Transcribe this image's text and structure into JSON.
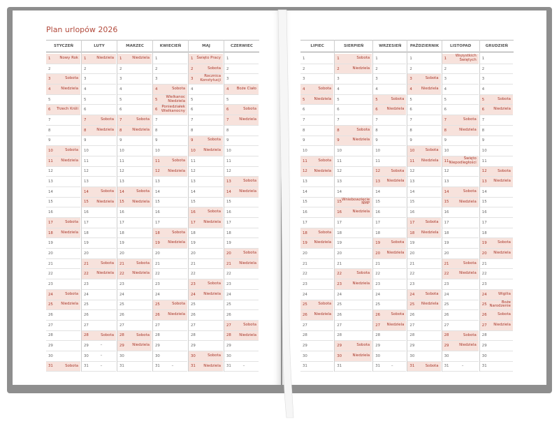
{
  "title": "Plan urlopów 2026",
  "colors": {
    "cover": "#8e8e8e",
    "accent": "#b24a3c",
    "highlight": "#f7e2dc"
  },
  "day_numbers": [
    "1",
    "2",
    "3",
    "4",
    "5",
    "6",
    "7",
    "8",
    "9",
    "10",
    "11",
    "12",
    "13",
    "14",
    "15",
    "16",
    "17",
    "18",
    "19",
    "20",
    "21",
    "22",
    "23",
    "24",
    "25",
    "26",
    "27",
    "28",
    "29",
    "30",
    "31"
  ],
  "months": [
    {
      "name": "STYCZEŃ",
      "labels": {
        "1": "Nowy Rok",
        "3": "Sobota",
        "4": "Niedziela",
        "6": "Trzech Króli",
        "10": "Sobota",
        "11": "Niedziela",
        "17": "Sobota",
        "18": "Niedziela",
        "24": "Sobota",
        "25": "Niedziela",
        "31": "Sobota"
      }
    },
    {
      "name": "LUTY",
      "labels": {
        "1": "Niedziela",
        "7": "Sobota",
        "8": "Niedziela",
        "14": "Sobota",
        "15": "Niedziela",
        "21": "Sobota",
        "22": "Niedziela",
        "28": "Sobota",
        "29": "–",
        "30": "–",
        "31": "–"
      }
    },
    {
      "name": "MARZEC",
      "labels": {
        "1": "Niedziela",
        "7": "Sobota",
        "8": "Niedziela",
        "14": "Sobota",
        "15": "Niedziela",
        "21": "Sobota",
        "22": "Niedziela",
        "28": "Sobota",
        "29": "Niedziela"
      }
    },
    {
      "name": "KWIECIEŃ",
      "labels": {
        "4": "Sobota",
        "5": "Wielkanoc Niedziela",
        "6": "Poniedziałek Wielkanocny",
        "11": "Sobota",
        "12": "Niedziela",
        "18": "Sobota",
        "19": "Niedziela",
        "25": "Sobota",
        "26": "Niedziela",
        "31": "–"
      }
    },
    {
      "name": "MAJ",
      "labels": {
        "1": "Święto Pracy",
        "2": "Sobota",
        "3": "Rocznica Konstytucji",
        "9": "Sobota",
        "10": "Niedziela",
        "16": "Sobota",
        "17": "Niedziela",
        "23": "Sobota",
        "24": "Niedziela",
        "30": "Sobota",
        "31": "Niedziela"
      }
    },
    {
      "name": "CZERWIEC",
      "labels": {
        "4": "Boże Ciało",
        "6": "Sobota",
        "7": "Niedziela",
        "13": "Sobota",
        "14": "Niedziela",
        "20": "Sobota",
        "21": "Niedziela",
        "27": "Sobota",
        "28": "Niedziela",
        "31": "–"
      }
    },
    {
      "name": "LIPIEC",
      "labels": {
        "4": "Sobota",
        "5": "Niedziela",
        "11": "Sobota",
        "12": "Niedziela",
        "18": "Sobota",
        "19": "Niedziela",
        "25": "Sobota",
        "26": "Niedziela"
      }
    },
    {
      "name": "SIERPIEŃ",
      "labels": {
        "1": "Sobota",
        "2": "Niedziela",
        "8": "Sobota",
        "9": "Niedziela",
        "15": "Wniebowzięcie NMP",
        "16": "Niedziela",
        "22": "Sobota",
        "23": "Niedziela",
        "29": "Sobota",
        "30": "Niedziela"
      }
    },
    {
      "name": "WRZESIEŃ",
      "labels": {
        "5": "Sobota",
        "6": "Niedziela",
        "12": "Sobota",
        "13": "Niedziela",
        "19": "Sobota",
        "20": "Niedziela",
        "26": "Sobota",
        "27": "Niedziela",
        "31": "–"
      }
    },
    {
      "name": "PAŹDZIERNIK",
      "labels": {
        "3": "Sobota",
        "4": "Niedziela",
        "10": "Sobota",
        "11": "Niedziela",
        "17": "Sobota",
        "18": "Niedziela",
        "24": "Sobota",
        "25": "Niedziela",
        "31": "Sobota"
      }
    },
    {
      "name": "LISTOPAD",
      "labels": {
        "1": "Wszystkich Świętych",
        "7": "Sobota",
        "8": "Niedziela",
        "11": "Święto Niepodległości",
        "14": "Sobota",
        "15": "Niedziela",
        "21": "Sobota",
        "22": "Niedziela",
        "28": "Sobota",
        "29": "Niedziela",
        "31": "–"
      }
    },
    {
      "name": "GRUDZIEŃ",
      "labels": {
        "5": "Sobota",
        "6": "Niedziela",
        "12": "Sobota",
        "13": "Niedziela",
        "19": "Sobota",
        "20": "Niedziela",
        "24": "Wigilia",
        "25": "Boże Narodzenie",
        "26": "Sobota",
        "27": "Niedziela"
      }
    }
  ]
}
